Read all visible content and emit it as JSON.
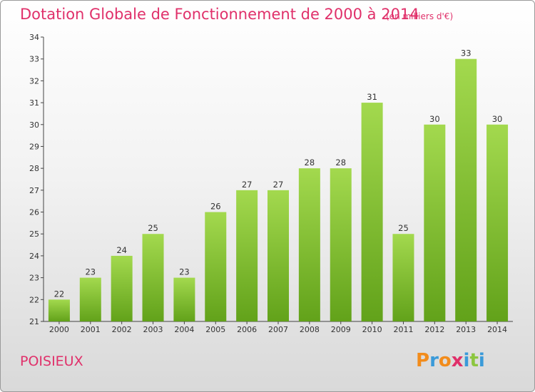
{
  "chart_data": {
    "type": "bar",
    "title": "Dotation Globale de Fonctionnement de 2000 à 2014",
    "subtitle": "(en milliers d'€)",
    "categories": [
      "2000",
      "2001",
      "2002",
      "2003",
      "2004",
      "2005",
      "2006",
      "2007",
      "2008",
      "2009",
      "2010",
      "2011",
      "2012",
      "2013",
      "2014"
    ],
    "values": [
      22,
      23,
      24,
      25,
      23,
      26,
      27,
      27,
      28,
      28,
      31,
      25,
      30,
      33,
      30
    ],
    "ylim": [
      21,
      34
    ],
    "yticks": [
      21,
      22,
      23,
      24,
      25,
      26,
      27,
      28,
      29,
      30,
      31,
      32,
      33,
      34
    ],
    "grid": false,
    "bar_color_top": "#a3d94e",
    "bar_color_bottom": "#62a21a"
  },
  "footer": {
    "commune": "POISIEUX",
    "logo_text": "Proxiti",
    "logo_colors": [
      "#f28c1c",
      "#3a9ad9",
      "#f28c1c",
      "#e0306a",
      "#3a9ad9",
      "#8cc63f",
      "#3a9ad9"
    ]
  },
  "colors": {
    "title": "#e0306a",
    "axis": "#333333"
  }
}
